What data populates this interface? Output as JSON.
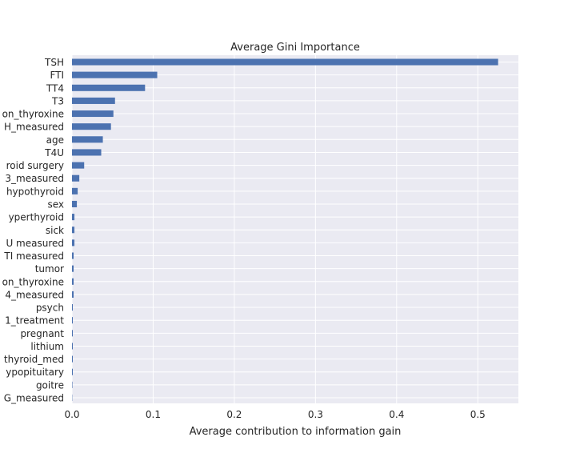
{
  "chart_data": {
    "type": "bar",
    "orientation": "horizontal",
    "title": "Average Gini Importance",
    "xlabel": "Average contribution to information gain",
    "ylabel": "",
    "xlim": [
      0.0,
      0.55
    ],
    "xticks": [
      0.0,
      0.1,
      0.2,
      0.3,
      0.4,
      0.5
    ],
    "xtick_labels": [
      "0.0",
      "0.1",
      "0.2",
      "0.3",
      "0.4",
      "0.5"
    ],
    "grid": true,
    "legend": "none",
    "bar_color": "#4c72b0",
    "background_color": "#eaeaf2",
    "categories": [
      "TSH",
      "FTI",
      "TT4",
      "T3",
      "on_thyroxine",
      "H_measured",
      "age",
      "T4U",
      "roid surgery",
      "3_measured",
      "hypothyroid",
      "sex",
      "yperthyroid",
      "sick",
      "U measured",
      "TI measured",
      "tumor",
      "on_thyroxine",
      "4_measured",
      "psych",
      "1_treatment",
      "pregnant",
      "lithium",
      "thyroid_med",
      "ypopituitary",
      "goitre",
      "G_measured"
    ],
    "values": [
      0.525,
      0.105,
      0.09,
      0.053,
      0.051,
      0.048,
      0.038,
      0.036,
      0.015,
      0.009,
      0.007,
      0.006,
      0.003,
      0.003,
      0.003,
      0.002,
      0.002,
      0.002,
      0.002,
      0.001,
      0.001,
      0.001,
      0.001,
      0.001,
      0.001,
      0.0005,
      0.0003
    ]
  }
}
